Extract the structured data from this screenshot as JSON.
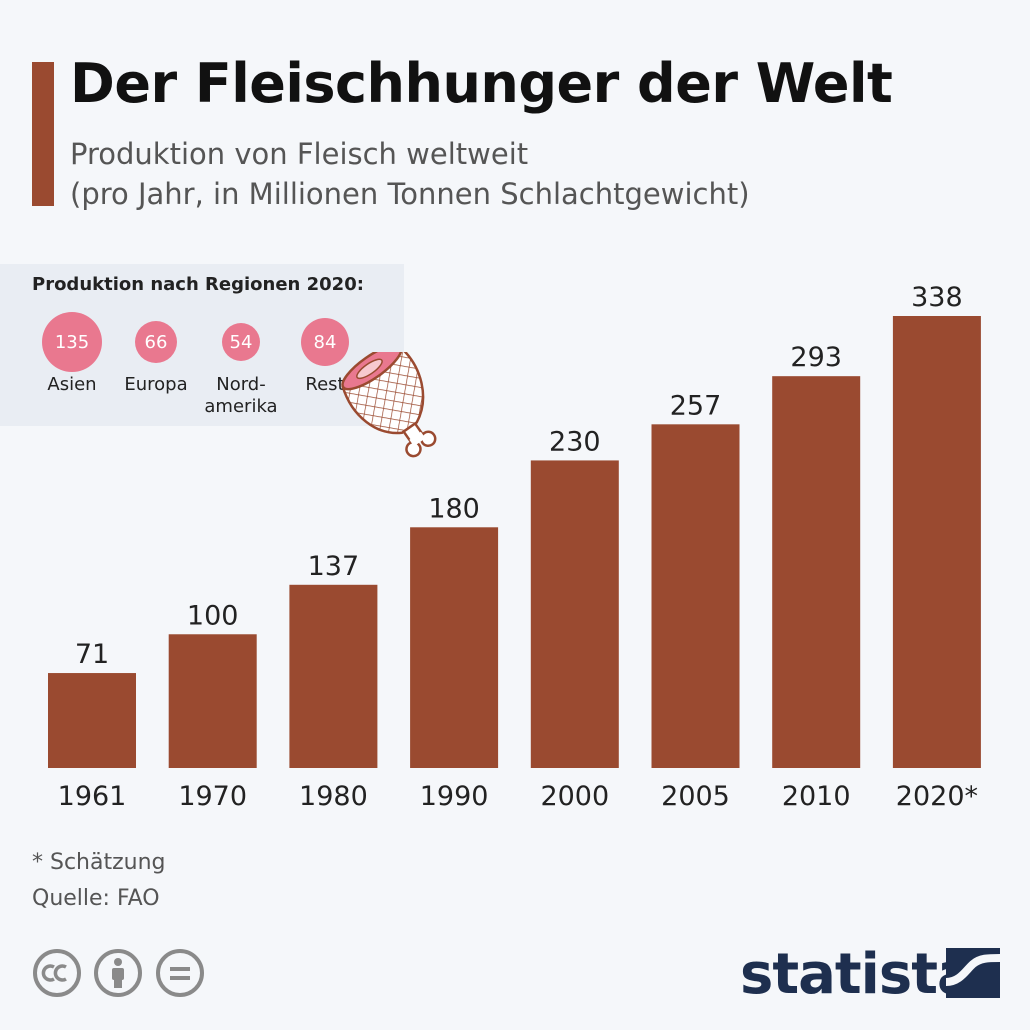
{
  "title": "Der Fleischhunger der Welt",
  "subtitle": {
    "line1": "Produktion von Fleisch weltweit",
    "line2": "(pro Jahr, in Millionen Tonnen Schlachtgewicht)"
  },
  "regions": {
    "title": "Produktion nach Regionen 2020:",
    "items": [
      {
        "label_line1": "Asien",
        "label_line2": "",
        "value": "135"
      },
      {
        "label_line1": "Europa",
        "label_line2": "",
        "value": "66"
      },
      {
        "label_line1": "Nord-",
        "label_line2": "amerika",
        "value": "54"
      },
      {
        "label_line1": "Rest",
        "label_line2": "",
        "value": "84"
      }
    ],
    "bubble_color": "#e9788f"
  },
  "chart_data": {
    "type": "bar",
    "categories": [
      "1961",
      "1970",
      "1980",
      "1990",
      "2000",
      "2005",
      "2010",
      "2020*"
    ],
    "values": [
      71,
      100,
      137,
      180,
      230,
      257,
      293,
      338
    ],
    "data_labels": [
      "71",
      "100",
      "137",
      "180",
      "230",
      "257",
      "293",
      "338"
    ],
    "title": "Der Fleischhunger der Welt",
    "xlabel": "",
    "ylabel": "",
    "ylim": [
      0,
      338
    ],
    "grid": false,
    "legend": "none",
    "bar_color": "#9a4a30"
  },
  "footnote": "* Schätzung",
  "source": "Quelle: FAO",
  "brand": "statista",
  "icons": {
    "license": [
      "cc-icon",
      "attribution-icon",
      "no-derivatives-icon"
    ],
    "illustration": "ham-icon",
    "logo": "statista-logo-icon"
  },
  "colors": {
    "accent": "#9a4a30",
    "brand": "#1e2f4f",
    "background": "#f5f7fa",
    "panel": "#e9edf3"
  }
}
